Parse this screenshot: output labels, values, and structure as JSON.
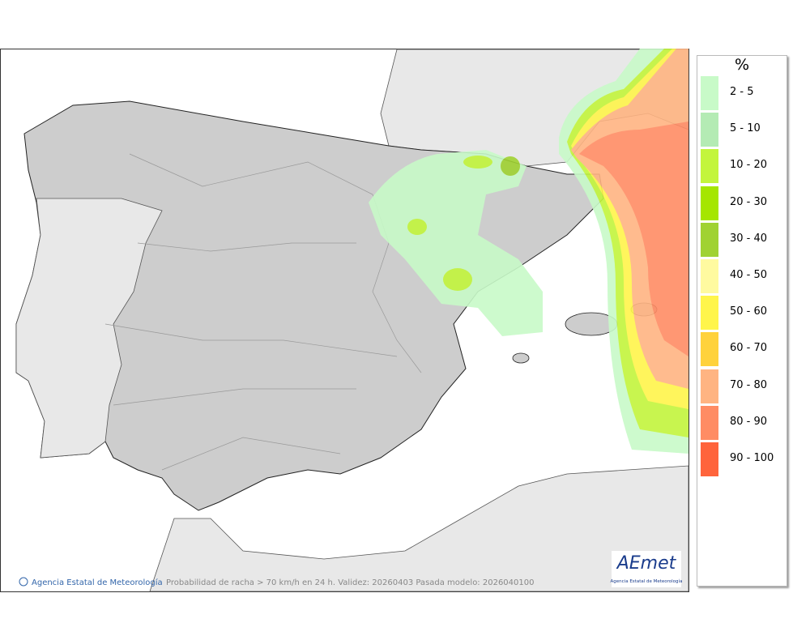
{
  "legend": {
    "title": "%",
    "items": [
      {
        "label": "2 - 5",
        "color": "#c8fac8"
      },
      {
        "label": "5 - 10",
        "color": "#b4ebb4"
      },
      {
        "label": "10 - 20",
        "color": "#c3f53c"
      },
      {
        "label": "20 - 30",
        "color": "#a5e600"
      },
      {
        "label": "30 - 40",
        "color": "#a0d232"
      },
      {
        "label": "40 - 50",
        "color": "#fffaa0"
      },
      {
        "label": "50 - 60",
        "color": "#fff54b"
      },
      {
        "label": "60 - 70",
        "color": "#ffd23c"
      },
      {
        "label": "70 - 80",
        "color": "#ffb482"
      },
      {
        "label": "80 - 90",
        "color": "#ff8c64"
      },
      {
        "label": "90 - 100",
        "color": "#ff643c"
      }
    ]
  },
  "footer": {
    "credit": "Agencia Estatal de Meteorología",
    "caption": "Probabilidad de racha > 70 km/h en 24 h. Validez: 20260403 Pasada modelo: 2026040100"
  },
  "logo": {
    "name": "AEmet",
    "subtitle": "Agencia Estatal de Meteorología"
  }
}
